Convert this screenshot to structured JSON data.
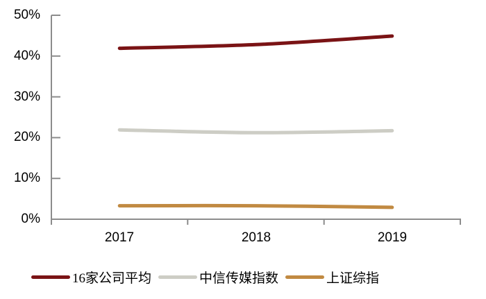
{
  "chart_data": {
    "type": "line",
    "title": "",
    "xlabel": "",
    "ylabel": "",
    "categories": [
      "2017",
      "2018",
      "2019"
    ],
    "series": [
      {
        "name": "16家公司平均",
        "color": "#7A1315",
        "values": [
          41.9,
          42.8,
          44.9
        ]
      },
      {
        "name": "中信传媒指数",
        "color": "#CDCDC5",
        "values": [
          21.9,
          21.2,
          21.7
        ]
      },
      {
        "name": "上证综指",
        "color": "#C18A42",
        "values": [
          3.3,
          3.3,
          2.9
        ]
      }
    ],
    "yticks": [
      "50%",
      "40%",
      "30%",
      "20%",
      "10%",
      "0%"
    ],
    "ylim": [
      0,
      50
    ],
    "grid": false,
    "legend_position": "bottom",
    "line_style": "smooth",
    "axis_color": "#8C8C8C",
    "text_color": "#000000",
    "background": "#FFFFFF"
  }
}
